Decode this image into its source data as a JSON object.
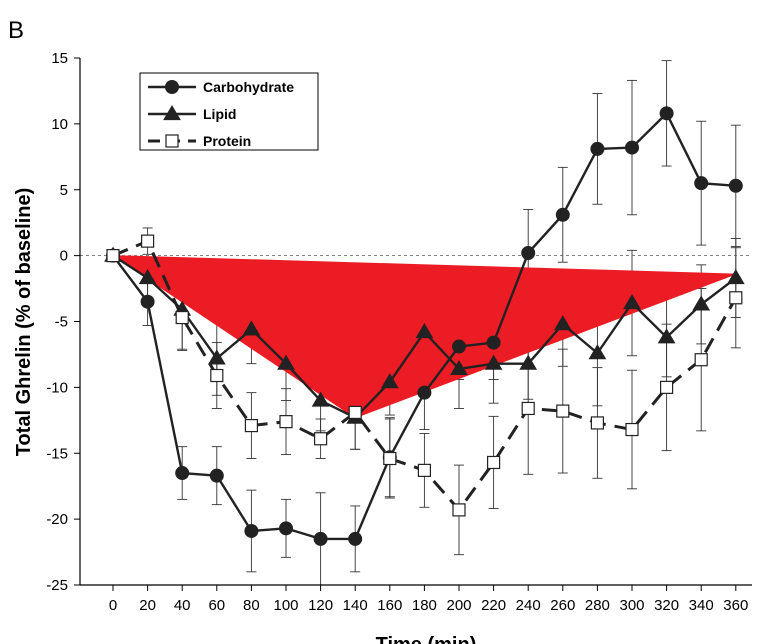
{
  "chart_data": {
    "type": "line",
    "panel_label": "B",
    "xlabel": "Time (min)",
    "ylabel": "Total Ghrelin (% of baseline)",
    "xlim": [
      -10,
      370
    ],
    "ylim": [
      -25,
      15
    ],
    "xticks": [
      0,
      20,
      40,
      60,
      80,
      100,
      120,
      140,
      160,
      180,
      200,
      220,
      240,
      260,
      280,
      300,
      320,
      340,
      360
    ],
    "yticks": [
      -25,
      -20,
      -15,
      -10,
      -5,
      0,
      5,
      10,
      15
    ],
    "baseline": 0,
    "legend": {
      "placement": "top-left"
    },
    "x": [
      0,
      20,
      40,
      60,
      80,
      100,
      120,
      140,
      160,
      180,
      200,
      220,
      240,
      260,
      280,
      300,
      320,
      340,
      360
    ],
    "series": [
      {
        "name": "Carbohydrate",
        "marker": "circle",
        "dash": "solid",
        "values": [
          0,
          -3.5,
          -16.5,
          -16.7,
          -20.9,
          -20.7,
          -21.5,
          -21.5,
          -15.3,
          -10.4,
          -6.9,
          -6.6,
          0.2,
          3.1,
          8.1,
          8.2,
          10.8,
          5.5,
          5.3
        ],
        "errors": [
          0,
          1.8,
          2.0,
          2.2,
          3.1,
          2.2,
          3.5,
          2.5,
          3.0,
          2.8,
          2.5,
          2.8,
          3.3,
          3.6,
          4.2,
          5.1,
          4.0,
          4.7,
          4.6
        ]
      },
      {
        "name": "Lipid",
        "marker": "triangle",
        "dash": "solid",
        "values": [
          0,
          -1.7,
          -4.1,
          -7.8,
          -5.6,
          -8.2,
          -11.0,
          -12.3,
          -9.6,
          -5.8,
          -8.6,
          -8.2,
          -8.2,
          -5.2,
          -7.4,
          -3.6,
          -6.2,
          -3.7,
          -1.7
        ],
        "errors": [
          0,
          1.5,
          3.0,
          2.8,
          2.6,
          2.8,
          2.3,
          2.4,
          2.5,
          2.7,
          3.0,
          3.0,
          2.7,
          3.2,
          4.0,
          4.0,
          3.0,
          3.0,
          3.0
        ]
      },
      {
        "name": "Protein",
        "marker": "square-open",
        "dash": "dashed",
        "values": [
          0,
          1.1,
          -4.7,
          -9.1,
          -12.9,
          -12.6,
          -13.9,
          -11.9,
          -15.4,
          -16.3,
          -19.3,
          -15.7,
          -11.6,
          -11.8,
          -12.7,
          -13.2,
          -10.0,
          -7.9,
          -3.2
        ],
        "errors": [
          0,
          1.0,
          2.5,
          2.5,
          2.5,
          2.5,
          1.5,
          2.8,
          3.0,
          2.8,
          3.4,
          3.5,
          5.0,
          4.7,
          4.2,
          4.5,
          4.8,
          5.4,
          3.8
        ]
      }
    ],
    "overlay_triangle": {
      "color": "#ec1c24",
      "vertices": [
        [
          0,
          0
        ],
        [
          140,
          -12.3
        ],
        [
          360,
          -1.4
        ]
      ]
    }
  }
}
